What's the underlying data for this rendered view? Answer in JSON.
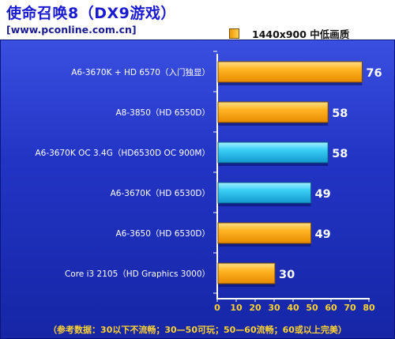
{
  "header": {
    "title": "使命召唤8（DX9游戏）",
    "site": "[www.pconline.com.cn]"
  },
  "footnote": "（参考数据：30以下不流畅；30—50可玩；50—60流畅；60或以上完美）",
  "colors": {
    "orange_bar": "#f5a20a",
    "cyan_bar": "#2bc4f0",
    "background": "#2234c4",
    "title": "#1a1ad0",
    "footnote": "#ffd230"
  },
  "chart_data": {
    "type": "bar",
    "orientation": "horizontal",
    "title": "使命召唤8（DX9游戏）",
    "categories": [
      "A6-3670K + HD 6570（入门独显）",
      "A8-3850（HD 6550D）",
      "A6-3670K OC 3.4G（HD6530D  OC 900M）",
      "A6-3670K（HD 6530D）",
      "A6-3650（HD 6530D）",
      "Core i3 2105（HD Graphics 3000）"
    ],
    "series": [
      {
        "name": "1440x900 中低画质",
        "values": [
          76,
          58,
          58,
          49,
          49,
          30
        ]
      }
    ],
    "bar_colors": [
      "orange",
      "orange",
      "cyan",
      "cyan",
      "orange",
      "orange"
    ],
    "xlim": [
      0,
      80
    ],
    "xticks": [
      0,
      10,
      20,
      30,
      40,
      50,
      60,
      70,
      80
    ],
    "grid": false,
    "legend_position": "top-right"
  }
}
